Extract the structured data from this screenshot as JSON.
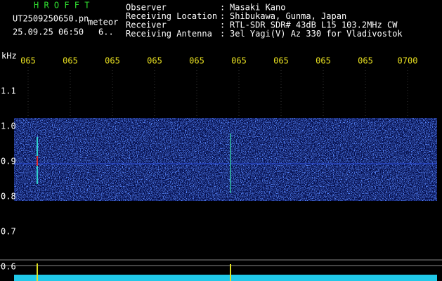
{
  "header": {
    "app": "H R O F F T",
    "file": "UT2509250650.pn",
    "mode": "meteor",
    "datetime": "25.09.25 06:50",
    "extra": "6..",
    "separator": ":",
    "fields": [
      {
        "label": "Observer",
        "value": "Masaki Kano"
      },
      {
        "label": "Receiving Location",
        "value": "Shibukawa, Gunma, Japan"
      },
      {
        "label": "Receiver",
        "value": "RTL-SDR SDR# 43dB L15 103.2MHz CW"
      },
      {
        "label": "Receiving Antenna",
        "value": "3el Yagi(V) Az 330 for Vladivostok"
      }
    ]
  },
  "axis": {
    "unit": "kHz",
    "x_labels": [
      "065",
      "065",
      "065",
      "065",
      "065",
      "065",
      "065",
      "065",
      "065",
      "0700"
    ],
    "y_labels": [
      "1.1",
      "1.0",
      "0.9",
      "0.8",
      "0.7",
      "0.6"
    ]
  }
}
